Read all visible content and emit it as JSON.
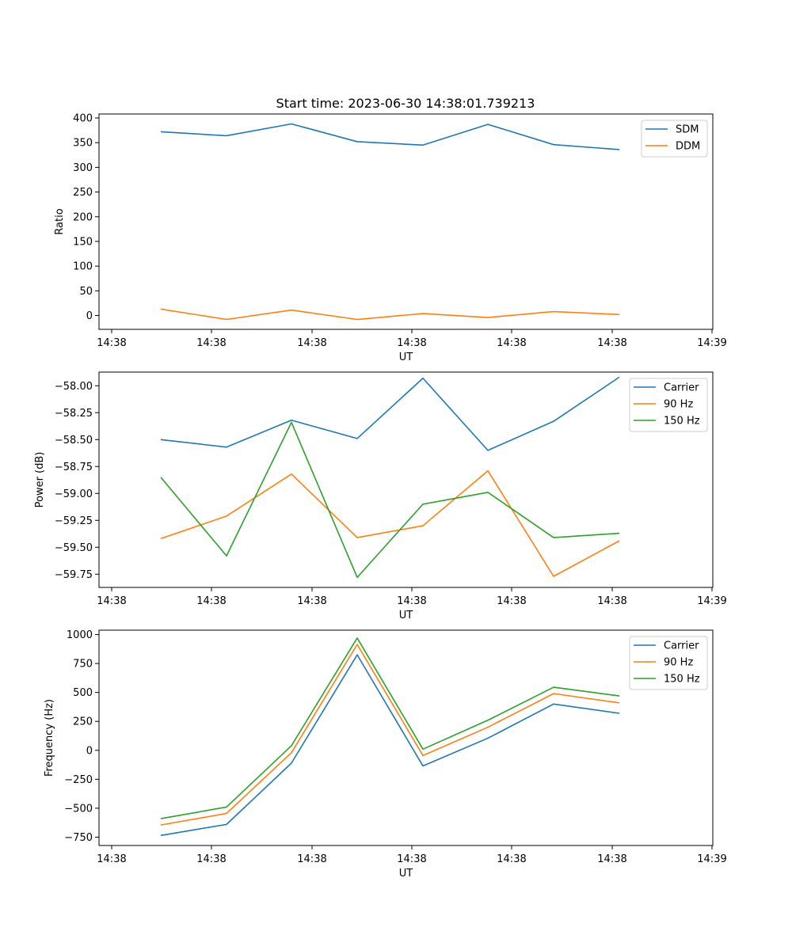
{
  "figure": {
    "title": "Start time: 2023-06-30 14:38:01.739213"
  },
  "chart_data": [
    {
      "type": "line",
      "title": "Start time: 2023-06-30 14:38:01.739213",
      "xlabel": "UT",
      "ylabel": "Ratio",
      "x_tick_labels": [
        "14:38",
        "14:38",
        "14:38",
        "14:38",
        "14:38",
        "14:38",
        "14:39"
      ],
      "yticks": [
        0,
        50,
        100,
        150,
        200,
        250,
        300,
        350,
        400
      ],
      "ylim": [
        -28,
        408
      ],
      "legend_position": "top-right",
      "grid": false,
      "series": [
        {
          "name": "SDM",
          "color": "#1f77b4",
          "values": [
            372,
            364,
            388,
            352,
            345,
            387,
            346,
            336
          ]
        },
        {
          "name": "DDM",
          "color": "#ff7f0e",
          "values": [
            13,
            -8,
            11,
            -8,
            4,
            -4,
            8,
            2
          ]
        }
      ]
    },
    {
      "type": "line",
      "title": "",
      "xlabel": "UT",
      "ylabel": "Power (dB)",
      "x_tick_labels": [
        "14:38",
        "14:38",
        "14:38",
        "14:38",
        "14:38",
        "14:38",
        "14:39"
      ],
      "yticks": [
        -59.75,
        -59.5,
        -59.25,
        -59.0,
        -58.75,
        -58.5,
        -58.25,
        -58.0
      ],
      "ytick_labels": [
        "−59.75",
        "−59.50",
        "−59.25",
        "−59.00",
        "−58.75",
        "−58.50",
        "−58.25",
        "−58.00"
      ],
      "ylim": [
        -59.873,
        -57.873
      ],
      "legend_position": "top-right",
      "grid": false,
      "series": [
        {
          "name": "Carrier",
          "color": "#1f77b4",
          "values": [
            -58.5,
            -58.57,
            -58.32,
            -58.49,
            -57.93,
            -58.6,
            -58.33,
            -57.92
          ]
        },
        {
          "name": "90 Hz",
          "color": "#ff7f0e",
          "values": [
            -59.42,
            -59.21,
            -58.82,
            -59.41,
            -59.3,
            -58.79,
            -59.77,
            -59.44
          ]
        },
        {
          "name": "150 Hz",
          "color": "#2ca02c",
          "values": [
            -58.85,
            -59.58,
            -58.34,
            -59.78,
            -59.1,
            -58.99,
            -59.41,
            -59.37
          ]
        }
      ]
    },
    {
      "type": "line",
      "title": "",
      "xlabel": "UT",
      "ylabel": "Frequency (Hz)",
      "x_tick_labels": [
        "14:38",
        "14:38",
        "14:38",
        "14:38",
        "14:38",
        "14:38",
        "14:39"
      ],
      "yticks": [
        -750,
        -500,
        -250,
        0,
        250,
        500,
        750,
        1000
      ],
      "ytick_labels": [
        "−750",
        "−500",
        "−250",
        "0",
        "250",
        "500",
        "750",
        "1000"
      ],
      "ylim": [
        -822,
        1038
      ],
      "legend_position": "top-right",
      "grid": false,
      "series": [
        {
          "name": "Carrier",
          "color": "#1f77b4",
          "values": [
            -735,
            -640,
            -110,
            825,
            -135,
            105,
            400,
            320
          ]
        },
        {
          "name": "90 Hz",
          "color": "#ff7f0e",
          "values": [
            -645,
            -545,
            -20,
            915,
            -45,
            200,
            490,
            410
          ]
        },
        {
          "name": "150 Hz",
          "color": "#2ca02c",
          "values": [
            -590,
            -490,
            40,
            970,
            10,
            260,
            545,
            470
          ]
        }
      ]
    }
  ]
}
